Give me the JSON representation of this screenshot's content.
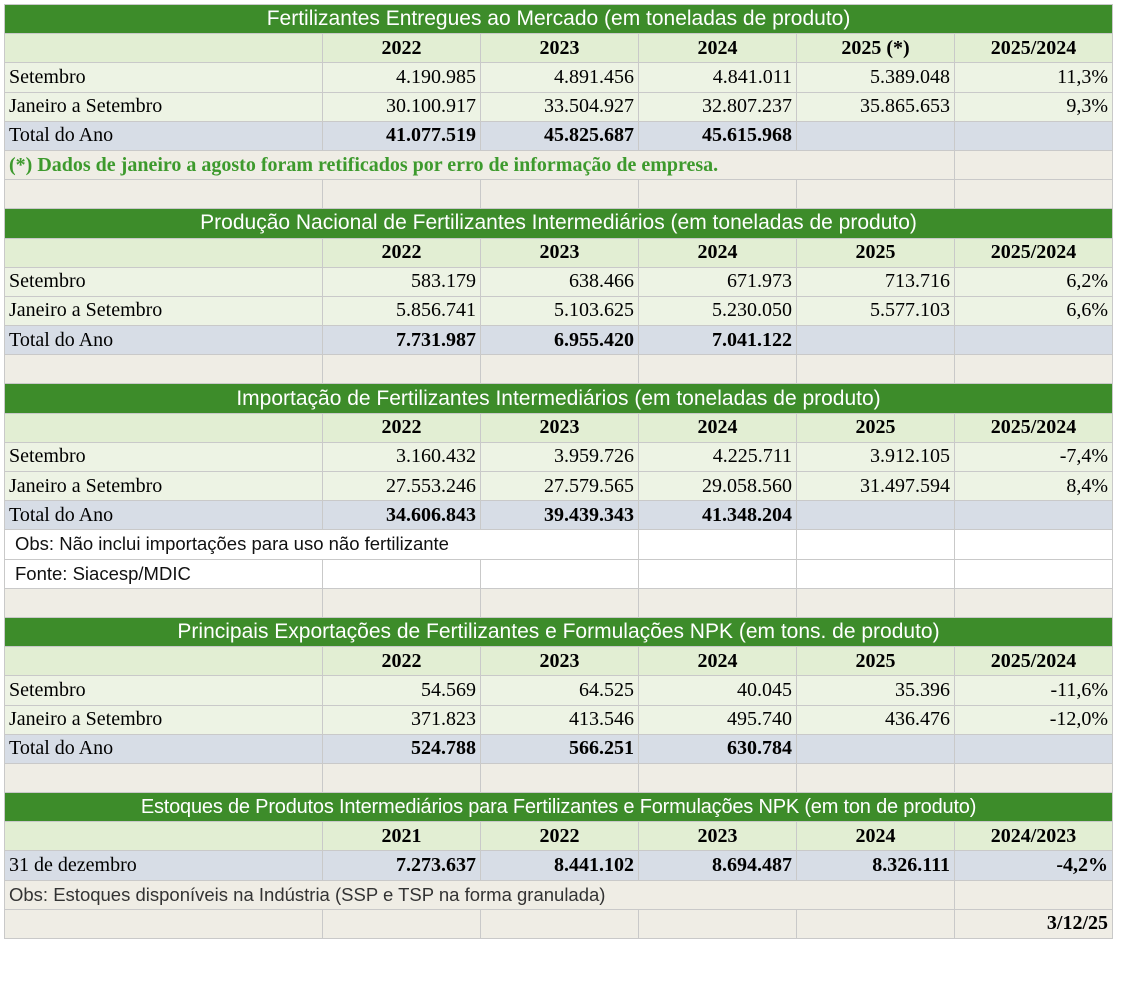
{
  "sections": [
    {
      "title": "Fertilizantes Entregues ao Mercado (em toneladas de produto)",
      "headers": [
        "2022",
        "2023",
        "2024",
        "2025 (*)",
        "2025/2024"
      ],
      "rows": [
        {
          "label": "Setembro",
          "values": [
            "4.190.985",
            "4.891.456",
            "4.841.011",
            "5.389.048",
            "11,3%"
          ]
        },
        {
          "label": "Janeiro a Setembro",
          "values": [
            "30.100.917",
            "33.504.927",
            "32.807.237",
            "35.865.653",
            "9,3%"
          ]
        }
      ],
      "total": {
        "label": "Total do Ano",
        "values": [
          "41.077.519",
          "45.825.687",
          "45.615.968",
          "",
          ""
        ]
      },
      "note": "(*) Dados de janeiro a agosto foram retificados por erro de informação de empresa."
    },
    {
      "title": "Produção Nacional de Fertilizantes Intermediários (em toneladas de produto)",
      "headers": [
        "2022",
        "2023",
        "2024",
        "2025",
        "2025/2024"
      ],
      "rows": [
        {
          "label": "Setembro",
          "values": [
            "583.179",
            "638.466",
            "671.973",
            "713.716",
            "6,2%"
          ]
        },
        {
          "label": "Janeiro a Setembro",
          "values": [
            "5.856.741",
            "5.103.625",
            "5.230.050",
            "5.577.103",
            "6,6%"
          ]
        }
      ],
      "total": {
        "label": "Total do Ano",
        "values": [
          "7.731.987",
          "6.955.420",
          "7.041.122",
          "",
          ""
        ]
      }
    },
    {
      "title": "Importação de Fertilizantes Intermediários (em toneladas de produto)",
      "headers": [
        "2022",
        "2023",
        "2024",
        "2025",
        "2025/2024"
      ],
      "rows": [
        {
          "label": "Setembro",
          "values": [
            "3.160.432",
            "3.959.726",
            "4.225.711",
            "3.912.105",
            "-7,4%"
          ]
        },
        {
          "label": "Janeiro a Setembro",
          "values": [
            "27.553.246",
            "27.579.565",
            "29.058.560",
            "31.497.594",
            "8,4%"
          ]
        }
      ],
      "total": {
        "label": "Total do Ano",
        "values": [
          "34.606.843",
          "39.439.343",
          "41.348.204",
          "",
          ""
        ]
      },
      "obs": "Obs: Não inclui importações para uso não fertilizante",
      "source": "Fonte: Siacesp/MDIC"
    },
    {
      "title": "Principais Exportações de Fertilizantes e Formulações NPK (em tons. de produto)",
      "headers": [
        "2022",
        "2023",
        "2024",
        "2025",
        "2025/2024"
      ],
      "rows": [
        {
          "label": "Setembro",
          "values": [
            "54.569",
            "64.525",
            "40.045",
            "35.396",
            "-11,6%"
          ]
        },
        {
          "label": "Janeiro a Setembro",
          "values": [
            "371.823",
            "413.546",
            "495.740",
            "436.476",
            "-12,0%"
          ]
        }
      ],
      "total": {
        "label": "Total do Ano",
        "values": [
          "524.788",
          "566.251",
          "630.784",
          "",
          ""
        ]
      }
    },
    {
      "title": "Estoques de Produtos Intermediários para Fertilizantes e Formulações NPK (em ton de produto)",
      "headers": [
        "2021",
        "2022",
        "2023",
        "2024",
        "2024/2023"
      ],
      "total": {
        "label": "31 de dezembro",
        "values": [
          "7.273.637",
          "8.441.102",
          "8.694.487",
          "8.326.111",
          "-4,2%"
        ]
      },
      "obs": "Obs: Estoques disponíveis na Indústria (SSP e TSP na forma granulada)"
    }
  ],
  "footer_date": "3/12/25",
  "colors": {
    "title_bg": "#3d8c2a",
    "header_bg": "#e2eed3",
    "row_bg": "#edf3e4",
    "total_bg": "#d7dde6",
    "spacer_bg": "#efede5",
    "note_text": "#3d9a2d"
  }
}
